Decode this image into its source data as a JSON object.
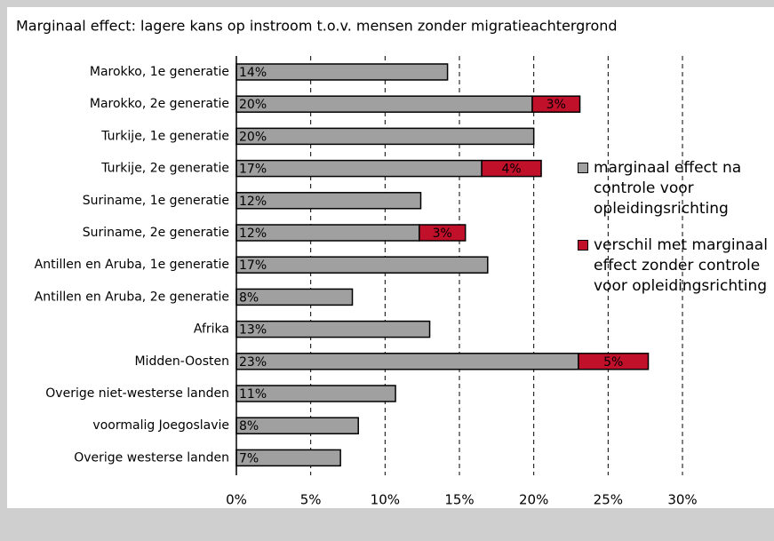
{
  "chart_data": {
    "type": "bar",
    "orientation": "horizontal",
    "stacked": true,
    "title": "Marginaal effect: lagere kans op instroom t.o.v. mensen zonder migratieachtergrond",
    "categories": [
      "Marokko, 1e generatie",
      "Marokko, 2e generatie",
      "Turkije, 1e generatie",
      "Turkije, 2e generatie",
      "Suriname, 1e generatie",
      "Suriname, 2e generatie",
      "Antillen en Aruba, 1e generatie",
      "Antillen en Aruba, 2e generatie",
      "Afrika",
      "Midden-Oosten",
      "Overige niet-westerse landen",
      "voormalig Joegoslavie",
      "Overige westerse landen"
    ],
    "series": [
      {
        "name": "marginaal effect na controle voor opleidingsrichting",
        "color": "#a0a0a0",
        "values": [
          14.2,
          19.9,
          20.0,
          16.5,
          12.4,
          12.3,
          16.9,
          7.8,
          13.0,
          23.0,
          10.7,
          8.2,
          7.0
        ],
        "value_labels": [
          "14%",
          "20%",
          "20%",
          "17%",
          "12%",
          "12%",
          "17%",
          "8%",
          "13%",
          "23%",
          "11%",
          "8%",
          "7%"
        ]
      },
      {
        "name": "verschil met marginaal effect zonder controle voor opleidingsrichting",
        "color": "#c0102a",
        "values": [
          null,
          3.2,
          null,
          4.0,
          null,
          3.1,
          null,
          null,
          null,
          4.7,
          null,
          null,
          null
        ],
        "value_labels": [
          null,
          "3%",
          null,
          "4%",
          null,
          "3%",
          null,
          null,
          null,
          "5%",
          null,
          null,
          null
        ]
      }
    ],
    "xlim": [
      0,
      30
    ],
    "xticks": [
      {
        "value": 0,
        "label": "0%"
      },
      {
        "value": 5,
        "label": "5%"
      },
      {
        "value": 10,
        "label": "10%"
      },
      {
        "value": 15,
        "label": "15%"
      },
      {
        "value": 20,
        "label": "20%"
      },
      {
        "value": 25,
        "label": "25%"
      },
      {
        "value": 30,
        "label": "30%"
      }
    ],
    "grid": true
  }
}
